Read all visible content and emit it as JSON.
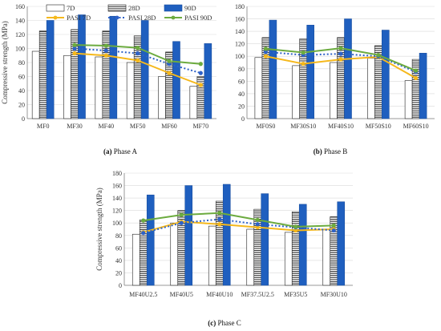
{
  "captions": [
    {
      "bold": "(a)",
      "rest": " Phase A"
    },
    {
      "bold": "(b)",
      "rest": " Phase B"
    },
    {
      "bold": "(c)",
      "rest": " Phase C"
    }
  ],
  "legend": {
    "entries": [
      "7D",
      "28D",
      "90D",
      "PASI 7D",
      "PASI 28D",
      "PASI 90D"
    ]
  },
  "colors": {
    "bar7": "#ffffff",
    "bar28": "#ffffff",
    "bar90": "#1f5fbf",
    "pasi7": "#f5b81c",
    "pasi28": "#2f62c7",
    "pasi90": "#6cab3f",
    "grid": "#d9d9d9",
    "axis": "#7f7f7f"
  },
  "chart_data": [
    {
      "type": "bar",
      "panel": "A",
      "ylabel": "Compressive strength (MPa)",
      "ylim": [
        0,
        160
      ],
      "yticks": [
        0,
        20,
        40,
        60,
        80,
        100,
        120,
        140,
        160
      ],
      "categories": [
        "MF0",
        "MF30",
        "MF40",
        "MF50",
        "MF60",
        "MF70"
      ],
      "series": [
        {
          "name": "7D",
          "kind": "bar",
          "values": [
            96,
            90,
            88,
            80,
            60,
            46
          ]
        },
        {
          "name": "28D",
          "kind": "bar",
          "values": [
            125,
            127,
            125,
            118,
            95,
            60
          ]
        },
        {
          "name": "90D",
          "kind": "bar",
          "values": [
            140,
            148,
            146,
            140,
            110,
            107
          ]
        },
        {
          "name": "PASI 7D",
          "kind": "line",
          "values": [
            null,
            93,
            90,
            83,
            65,
            48
          ]
        },
        {
          "name": "PASI 28D",
          "kind": "line",
          "values": [
            null,
            100,
            97,
            93,
            78,
            65
          ]
        },
        {
          "name": "PASI 90D",
          "kind": "line",
          "values": [
            null,
            105,
            104,
            101,
            82,
            78
          ]
        }
      ]
    },
    {
      "type": "bar",
      "panel": "B",
      "ylabel": "",
      "ylim": [
        0,
        180
      ],
      "yticks": [
        0,
        20,
        40,
        60,
        80,
        100,
        120,
        140,
        160,
        180
      ],
      "categories": [
        "MF0S0",
        "MF30S10",
        "MF40S10",
        "MF50S10",
        "MF60S10"
      ],
      "series": [
        {
          "name": "7D",
          "kind": "bar",
          "values": [
            98,
            85,
            90,
            97,
            61
          ]
        },
        {
          "name": "28D",
          "kind": "bar",
          "values": [
            130,
            128,
            130,
            117,
            95
          ]
        },
        {
          "name": "90D",
          "kind": "bar",
          "values": [
            158,
            150,
            160,
            142,
            105
          ]
        },
        {
          "name": "PASI 7D",
          "kind": "line",
          "values": [
            100,
            88,
            95,
            99,
            65
          ]
        },
        {
          "name": "PASI 28D",
          "kind": "line",
          "values": [
            107,
            102,
            104,
            100,
            75
          ]
        },
        {
          "name": "PASI 90D",
          "kind": "line",
          "values": [
            112,
            106,
            113,
            102,
            77
          ]
        }
      ]
    },
    {
      "type": "bar",
      "panel": "C",
      "ylabel": "Compressive strength (MPa)",
      "ylim": [
        0,
        180
      ],
      "yticks": [
        0,
        20,
        40,
        60,
        80,
        100,
        120,
        140,
        160,
        180
      ],
      "categories": [
        "MF40U2.5",
        "MF40U5",
        "MF40U10",
        "MF37.5U2.5",
        "MF35U5",
        "MF30U10"
      ],
      "series": [
        {
          "name": "7D",
          "kind": "bar",
          "values": [
            82,
            100,
            95,
            90,
            85,
            90
          ]
        },
        {
          "name": "28D",
          "kind": "bar",
          "values": [
            105,
            120,
            135,
            122,
            118,
            110
          ]
        },
        {
          "name": "90D",
          "kind": "bar",
          "values": [
            145,
            160,
            162,
            147,
            130,
            134
          ]
        },
        {
          "name": "PASI 7D",
          "kind": "line",
          "values": [
            85,
            102,
            98,
            93,
            88,
            90
          ]
        },
        {
          "name": "PASI 28D",
          "kind": "line",
          "values": [
            84,
            100,
            106,
            98,
            93,
            88
          ]
        },
        {
          "name": "PASI 90D",
          "kind": "line",
          "values": [
            104,
            113,
            116,
            105,
            94,
            96
          ]
        }
      ]
    }
  ]
}
